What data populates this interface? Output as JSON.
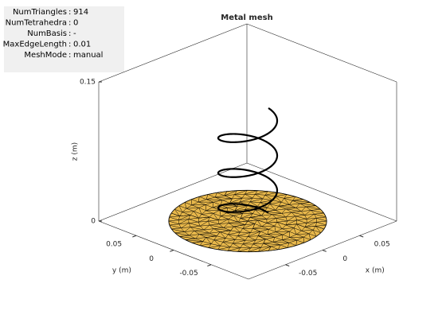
{
  "info": {
    "separator": ":",
    "rows": [
      {
        "key": "NumTriangles",
        "value": 914
      },
      {
        "key": "NumTetrahedra",
        "value": 0
      },
      {
        "key": "NumBasis",
        "value": "-"
      },
      {
        "key": "MaxEdgeLength",
        "value": 0.01
      },
      {
        "key": "MeshMode",
        "value": "manual"
      }
    ]
  },
  "chart_data": {
    "type": "mesh3d",
    "title": "Metal mesh",
    "xlabel": "x (m)",
    "ylabel": "y (m)",
    "zlabel": "z (m)",
    "xlim": [
      -0.1,
      0.1
    ],
    "ylim": [
      -0.1,
      0.1
    ],
    "zlim": [
      0,
      0.15
    ],
    "xticks": [
      -0.05,
      0,
      0.05
    ],
    "yticks": [
      -0.05,
      0,
      0.05
    ],
    "zticks": [
      0,
      0.15
    ],
    "color": "#e8b84b"
  }
}
